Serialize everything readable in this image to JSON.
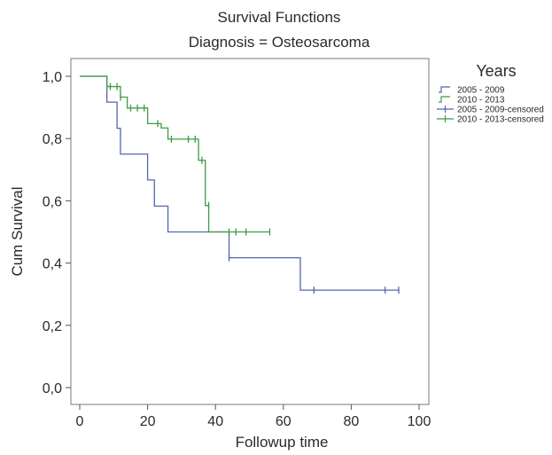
{
  "chart_data": {
    "type": "line",
    "title": "Survival Functions",
    "subtitle": "Diagnosis = Osteosarcoma",
    "xlabel": "Followup time",
    "ylabel": "Cum Survival",
    "xlim": [
      -2,
      100
    ],
    "ylim": [
      0.0,
      1.0
    ],
    "x_ticks": [
      "0",
      "20",
      "40",
      "60",
      "80",
      "100"
    ],
    "y_ticks": [
      "0,0",
      "0,2",
      "0,4",
      "0,6",
      "0,8",
      "1,0"
    ],
    "grid": false,
    "legend": {
      "title": "Years",
      "placement": "right",
      "entries": [
        "2005 - 2009",
        "2010 - 2013",
        "2005 - 2009-censored",
        "2010 - 2013-censored"
      ]
    },
    "series": [
      {
        "name": "2005 - 2009",
        "color": "#5566aa",
        "step_x": [
          0,
          8,
          11,
          12,
          20,
          22,
          26,
          44,
          65,
          94
        ],
        "step_y": [
          1.0,
          0.917,
          0.833,
          0.75,
          0.667,
          0.583,
          0.5,
          0.417,
          0.313,
          0.313
        ],
        "censored_x": [
          44,
          69,
          90,
          94
        ],
        "censored_y": [
          0.417,
          0.313,
          0.313,
          0.313
        ]
      },
      {
        "name": "2010 - 2013",
        "color": "#3f9b45",
        "step_x": [
          0,
          8,
          12,
          14,
          20,
          24,
          26,
          35,
          37,
          38,
          56
        ],
        "step_y": [
          1.0,
          0.967,
          0.933,
          0.898,
          0.848,
          0.834,
          0.798,
          0.73,
          0.585,
          0.5,
          0.5
        ],
        "censored_x": [
          9,
          11,
          12,
          15,
          17,
          19,
          23,
          27,
          32,
          34,
          36,
          38,
          44,
          46,
          49,
          56
        ],
        "censored_y": [
          0.967,
          0.967,
          0.933,
          0.898,
          0.898,
          0.898,
          0.848,
          0.798,
          0.798,
          0.798,
          0.73,
          0.585,
          0.5,
          0.5,
          0.5,
          0.5
        ]
      }
    ]
  }
}
